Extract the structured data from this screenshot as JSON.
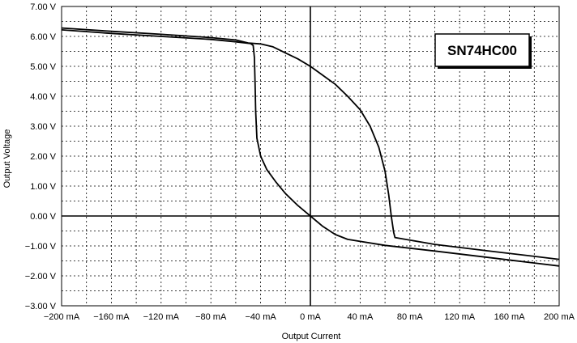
{
  "chart_data": {
    "type": "line",
    "title": "",
    "xlabel": "Output Current",
    "ylabel": "Output Voltage",
    "xlim": [
      -200,
      200
    ],
    "ylim": [
      -3,
      7
    ],
    "x_unit": "mA",
    "y_unit": "V",
    "grid": true,
    "x_ticks": [
      {
        "value": -200,
        "label": "−200 mA"
      },
      {
        "value": -160,
        "label": "−160 mA"
      },
      {
        "value": -120,
        "label": "−120 mA"
      },
      {
        "value": -80,
        "label": "−80 mA"
      },
      {
        "value": -40,
        "label": "−40 mA"
      },
      {
        "value": 0,
        "label": "0 mA"
      },
      {
        "value": 40,
        "label": "40 mA"
      },
      {
        "value": 80,
        "label": "80 mA"
      },
      {
        "value": 120,
        "label": "120 mA"
      },
      {
        "value": 160,
        "label": "160 mA"
      },
      {
        "value": 200,
        "label": "200 mA"
      }
    ],
    "y_ticks": [
      {
        "value": 7,
        "label": "7.00 V"
      },
      {
        "value": 6,
        "label": "6.00 V"
      },
      {
        "value": 5,
        "label": "5.00 V"
      },
      {
        "value": 4,
        "label": "4.00 V"
      },
      {
        "value": 3,
        "label": "3.00 V"
      },
      {
        "value": 2,
        "label": "2.00 V"
      },
      {
        "value": 1,
        "label": "1.00 V"
      },
      {
        "value": 0,
        "label": "0.00 V"
      },
      {
        "value": -1,
        "label": "−1.00 V"
      },
      {
        "value": -2,
        "label": "−2.00 V"
      },
      {
        "value": -3,
        "label": "−3.00 V"
      }
    ],
    "legend": {
      "text": "SN74HC00",
      "placement": "top-right"
    },
    "series": [
      {
        "points": [
          [
            -200,
            6.28
          ],
          [
            -160,
            6.17
          ],
          [
            -120,
            6.07
          ],
          [
            -80,
            5.96
          ],
          [
            -60,
            5.88
          ],
          [
            -50,
            5.78
          ],
          [
            -40,
            5.75
          ],
          [
            -30,
            5.65
          ],
          [
            -20,
            5.45
          ],
          [
            -10,
            5.25
          ],
          [
            0,
            5.0
          ],
          [
            10,
            4.7
          ],
          [
            20,
            4.4
          ],
          [
            30,
            4.0
          ],
          [
            40,
            3.55
          ],
          [
            48,
            3.0
          ],
          [
            55,
            2.3
          ],
          [
            60,
            1.5
          ],
          [
            63,
            0.7
          ],
          [
            65,
            0.0
          ],
          [
            67,
            -0.55
          ],
          [
            68,
            -0.72
          ],
          [
            75,
            -0.77
          ],
          [
            100,
            -0.95
          ],
          [
            140,
            -1.15
          ],
          [
            180,
            -1.35
          ],
          [
            200,
            -1.45
          ]
        ]
      },
      {
        "points": [
          [
            -200,
            6.22
          ],
          [
            -160,
            6.1
          ],
          [
            -120,
            6.0
          ],
          [
            -80,
            5.9
          ],
          [
            -60,
            5.82
          ],
          [
            -48,
            5.76
          ],
          [
            -46,
            5.7
          ],
          [
            -45,
            5.3
          ],
          [
            -44.5,
            4.5
          ],
          [
            -44,
            3.5
          ],
          [
            -43,
            2.6
          ],
          [
            -40,
            2.0
          ],
          [
            -35,
            1.55
          ],
          [
            -28,
            1.15
          ],
          [
            -20,
            0.75
          ],
          [
            -10,
            0.35
          ],
          [
            0,
            0.0
          ],
          [
            10,
            -0.35
          ],
          [
            20,
            -0.62
          ],
          [
            30,
            -0.78
          ],
          [
            60,
            -0.98
          ],
          [
            100,
            -1.17
          ],
          [
            140,
            -1.37
          ],
          [
            180,
            -1.57
          ],
          [
            200,
            -1.67
          ]
        ]
      }
    ]
  }
}
